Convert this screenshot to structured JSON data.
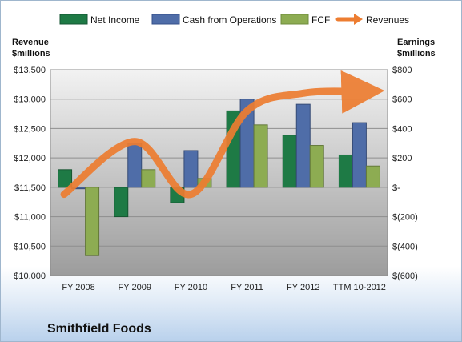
{
  "chart_data": {
    "type": "bar",
    "company": "Smithfield Foods",
    "categories": [
      "FY 2008",
      "FY 2009",
      "FY 2010",
      "FY 2011",
      "FY 2012",
      "TTM 10-2012"
    ],
    "series": [
      {
        "name": "Net Income",
        "axis": "right",
        "color": "#1e7a45",
        "values": [
          120,
          -200,
          -105,
          520,
          355,
          220
        ]
      },
      {
        "name": "Cash from Operations",
        "axis": "right",
        "color": "#4f6da8",
        "values": [
          -10,
          300,
          250,
          600,
          565,
          440
        ]
      },
      {
        "name": "FCF",
        "axis": "right",
        "color": "#8dac52",
        "values": [
          -465,
          120,
          60,
          425,
          285,
          145
        ]
      },
      {
        "name": "Revenues",
        "axis": "left",
        "type": "line",
        "color": "#ed7d31",
        "values": [
          11380,
          12280,
          11380,
          12800,
          13100,
          13130
        ]
      }
    ],
    "left_axis": {
      "title_line1": "Revenue",
      "title_line2": "$millions",
      "min": 10000,
      "max": 13500,
      "step": 500,
      "tick_labels": [
        "$10,000",
        "$10,500",
        "$11,000",
        "$11,500",
        "$12,000",
        "$12,500",
        "$13,000",
        "$13,500"
      ]
    },
    "right_axis": {
      "title_line1": "Earnings",
      "title_line2": "$millions",
      "min": -600,
      "max": 800,
      "step": 200,
      "tick_labels": [
        "$(600)",
        "$(400)",
        "$(200)",
        "$-",
        "$200",
        "$400",
        "$600",
        "$800"
      ]
    },
    "legend_position": "top",
    "grid": true
  }
}
